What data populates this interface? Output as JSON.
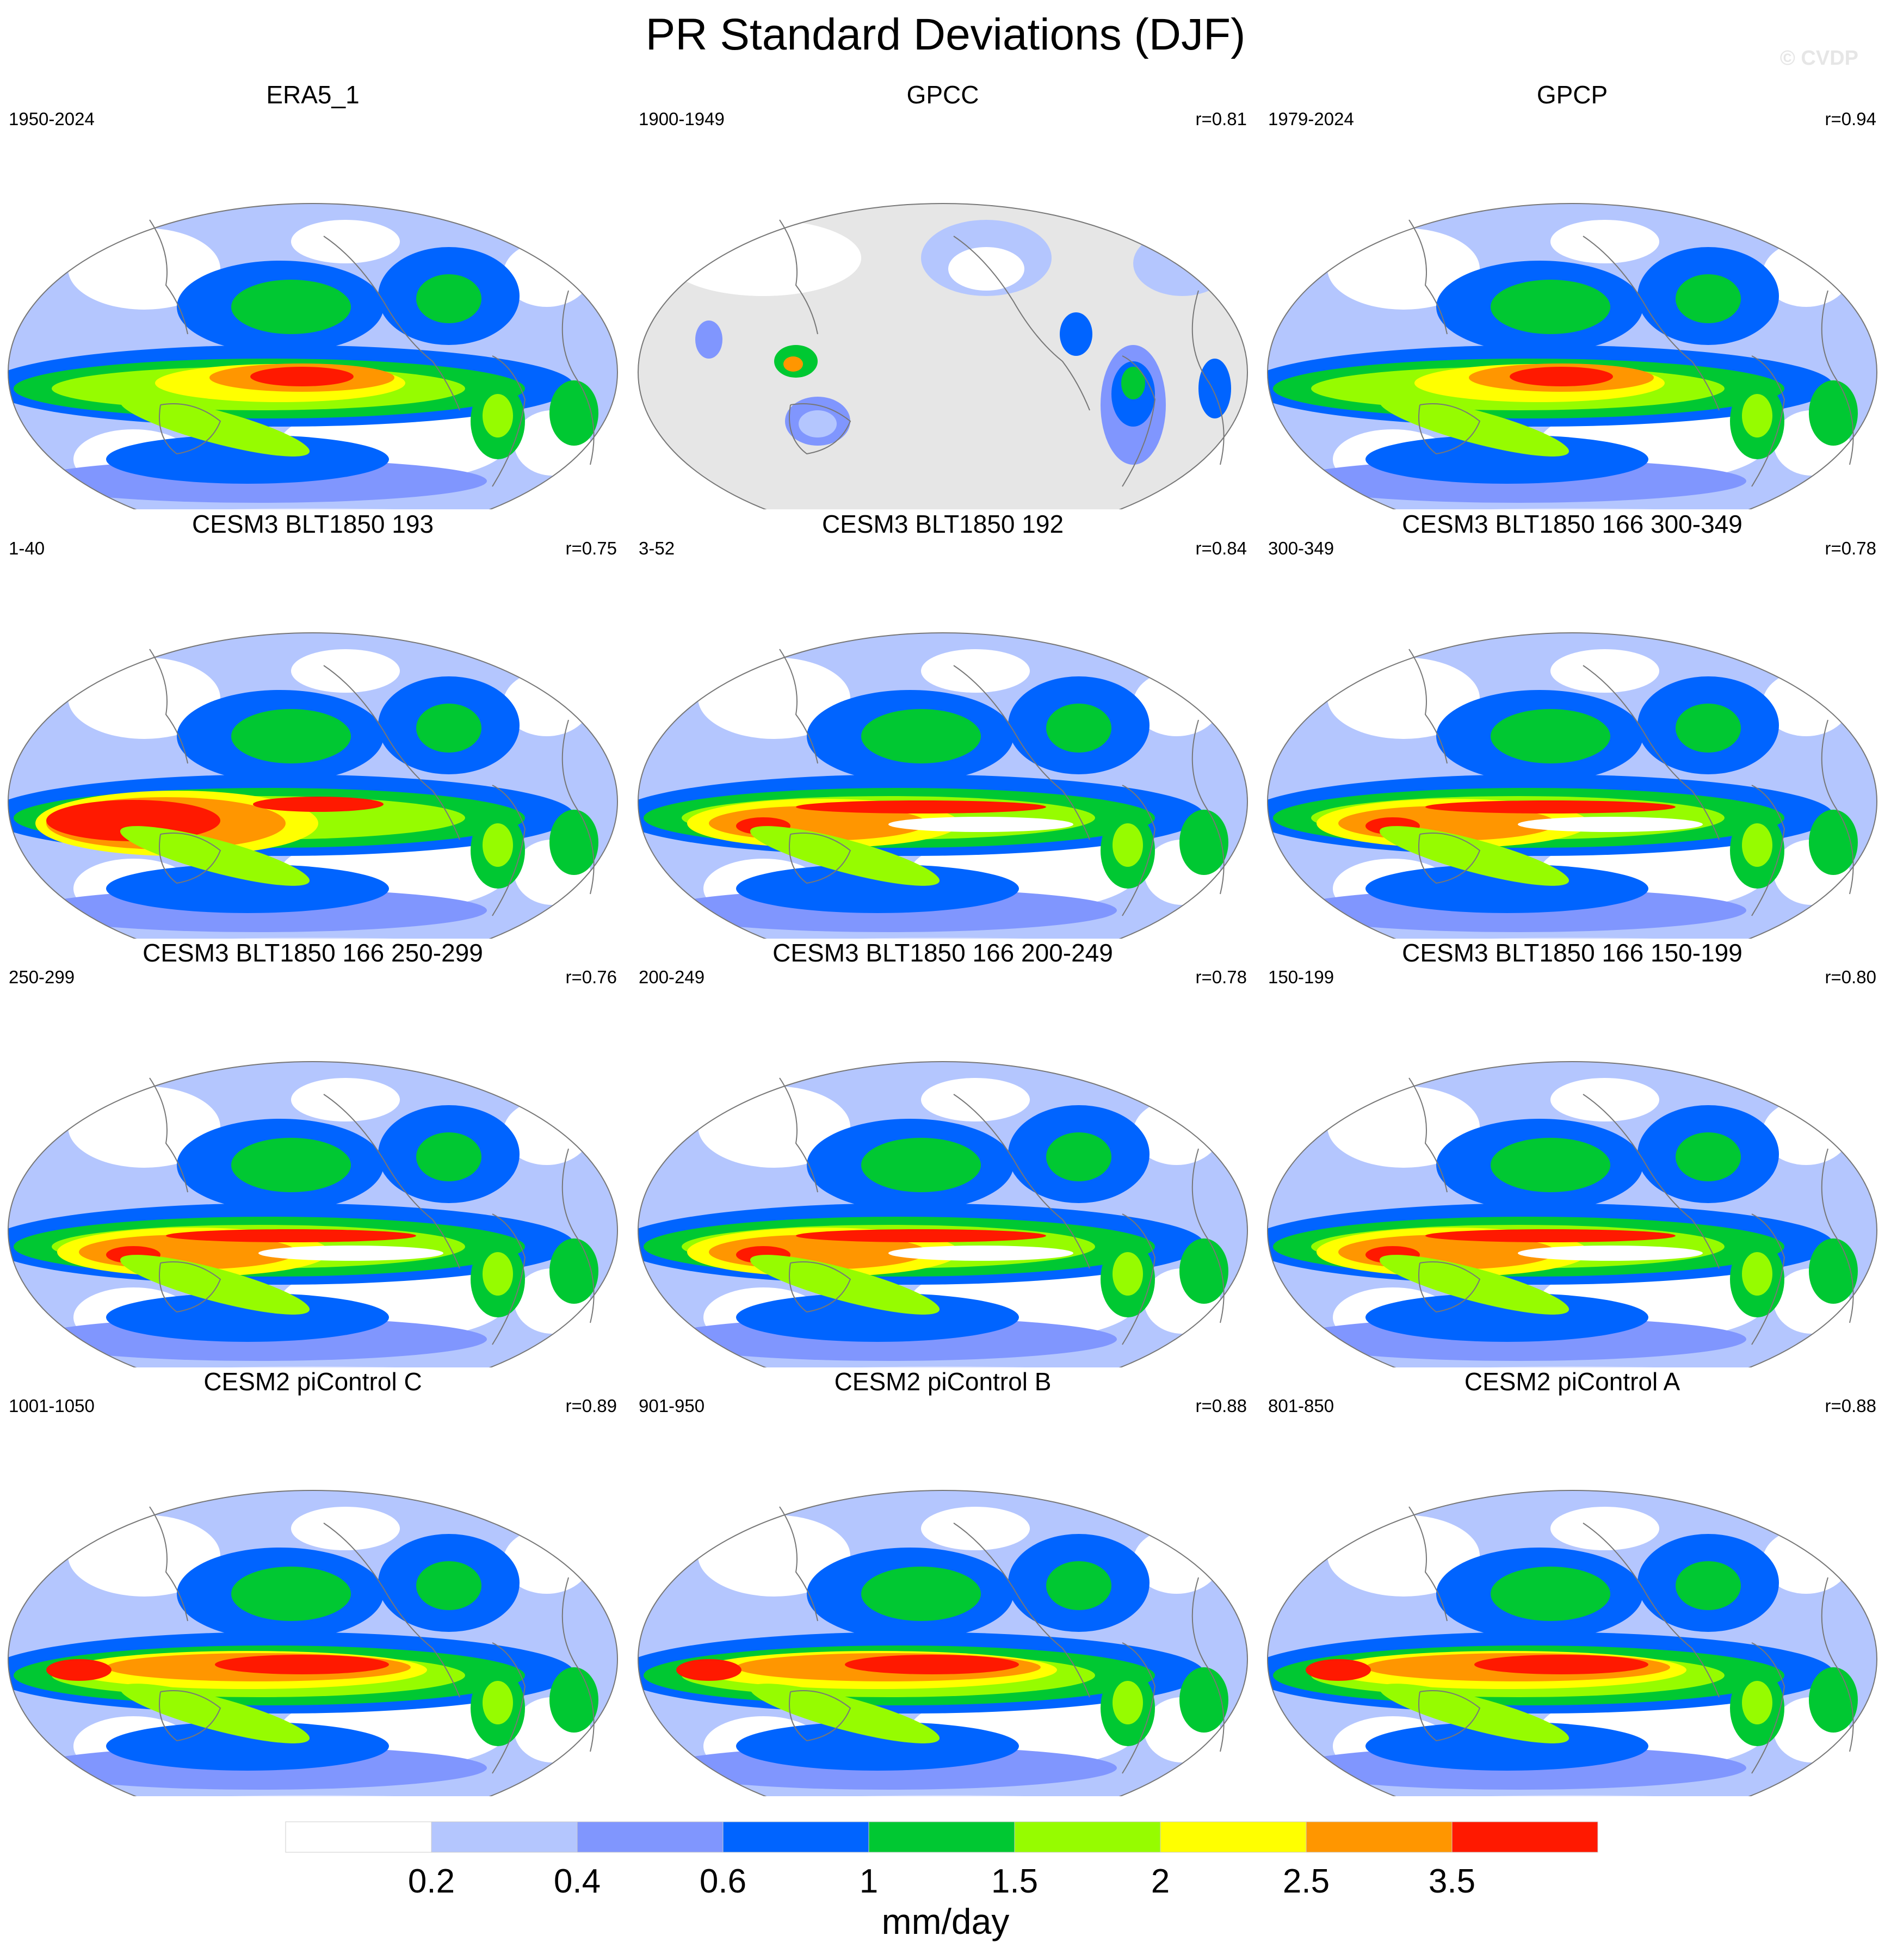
{
  "title": "PR Standard Deviations (DJF)",
  "watermark": "© CVDP",
  "colors": {
    "levels": [
      "#ffffff",
      "#b4c6fe",
      "#8096fe",
      "#0064ff",
      "#00c832",
      "#96fc00",
      "#ffff00",
      "#ff9600",
      "#ff1900"
    ],
    "land_mask": "#e6e6e6",
    "coast": "#777777"
  },
  "colorbar": {
    "labels": [
      "0.2",
      "0.4",
      "0.6",
      "1",
      "1.5",
      "2",
      "2.5",
      "3.5"
    ],
    "units": "mm/day"
  },
  "panels": [
    {
      "title": "ERA5_1",
      "years": "1950-2024",
      "corr": "",
      "style": "era"
    },
    {
      "title": "GPCC",
      "years": "1900-1949",
      "corr": "r=0.81",
      "style": "gpcc"
    },
    {
      "title": "GPCP",
      "years": "1979-2024",
      "corr": "r=0.94",
      "style": "gpcp"
    },
    {
      "title": "CESM3 BLT1850 193",
      "years": "1-40",
      "corr": "r=0.75",
      "style": "cesm3a"
    },
    {
      "title": "CESM3 BLT1850 192",
      "years": "3-52",
      "corr": "r=0.84",
      "style": "cesm3b"
    },
    {
      "title": "CESM3 BLT1850 166 300-349",
      "years": "300-349",
      "corr": "r=0.78",
      "style": "cesm3c"
    },
    {
      "title": "CESM3 BLT1850 166 250-299",
      "years": "250-299",
      "corr": "r=0.76",
      "style": "cesm3c"
    },
    {
      "title": "CESM3 BLT1850 166 200-249",
      "years": "200-249",
      "corr": "r=0.78",
      "style": "cesm3c"
    },
    {
      "title": "CESM3 BLT1850 166 150-199",
      "years": "150-199",
      "corr": "r=0.80",
      "style": "cesm3c"
    },
    {
      "title": "CESM2 piControl C",
      "years": "1001-1050",
      "corr": "r=0.89",
      "style": "cesm2"
    },
    {
      "title": "CESM2 piControl B",
      "years": "901-950",
      "corr": "r=0.88",
      "style": "cesm2"
    },
    {
      "title": "CESM2 piControl A",
      "years": "801-850",
      "corr": "r=0.88",
      "style": "cesm2"
    }
  ]
}
